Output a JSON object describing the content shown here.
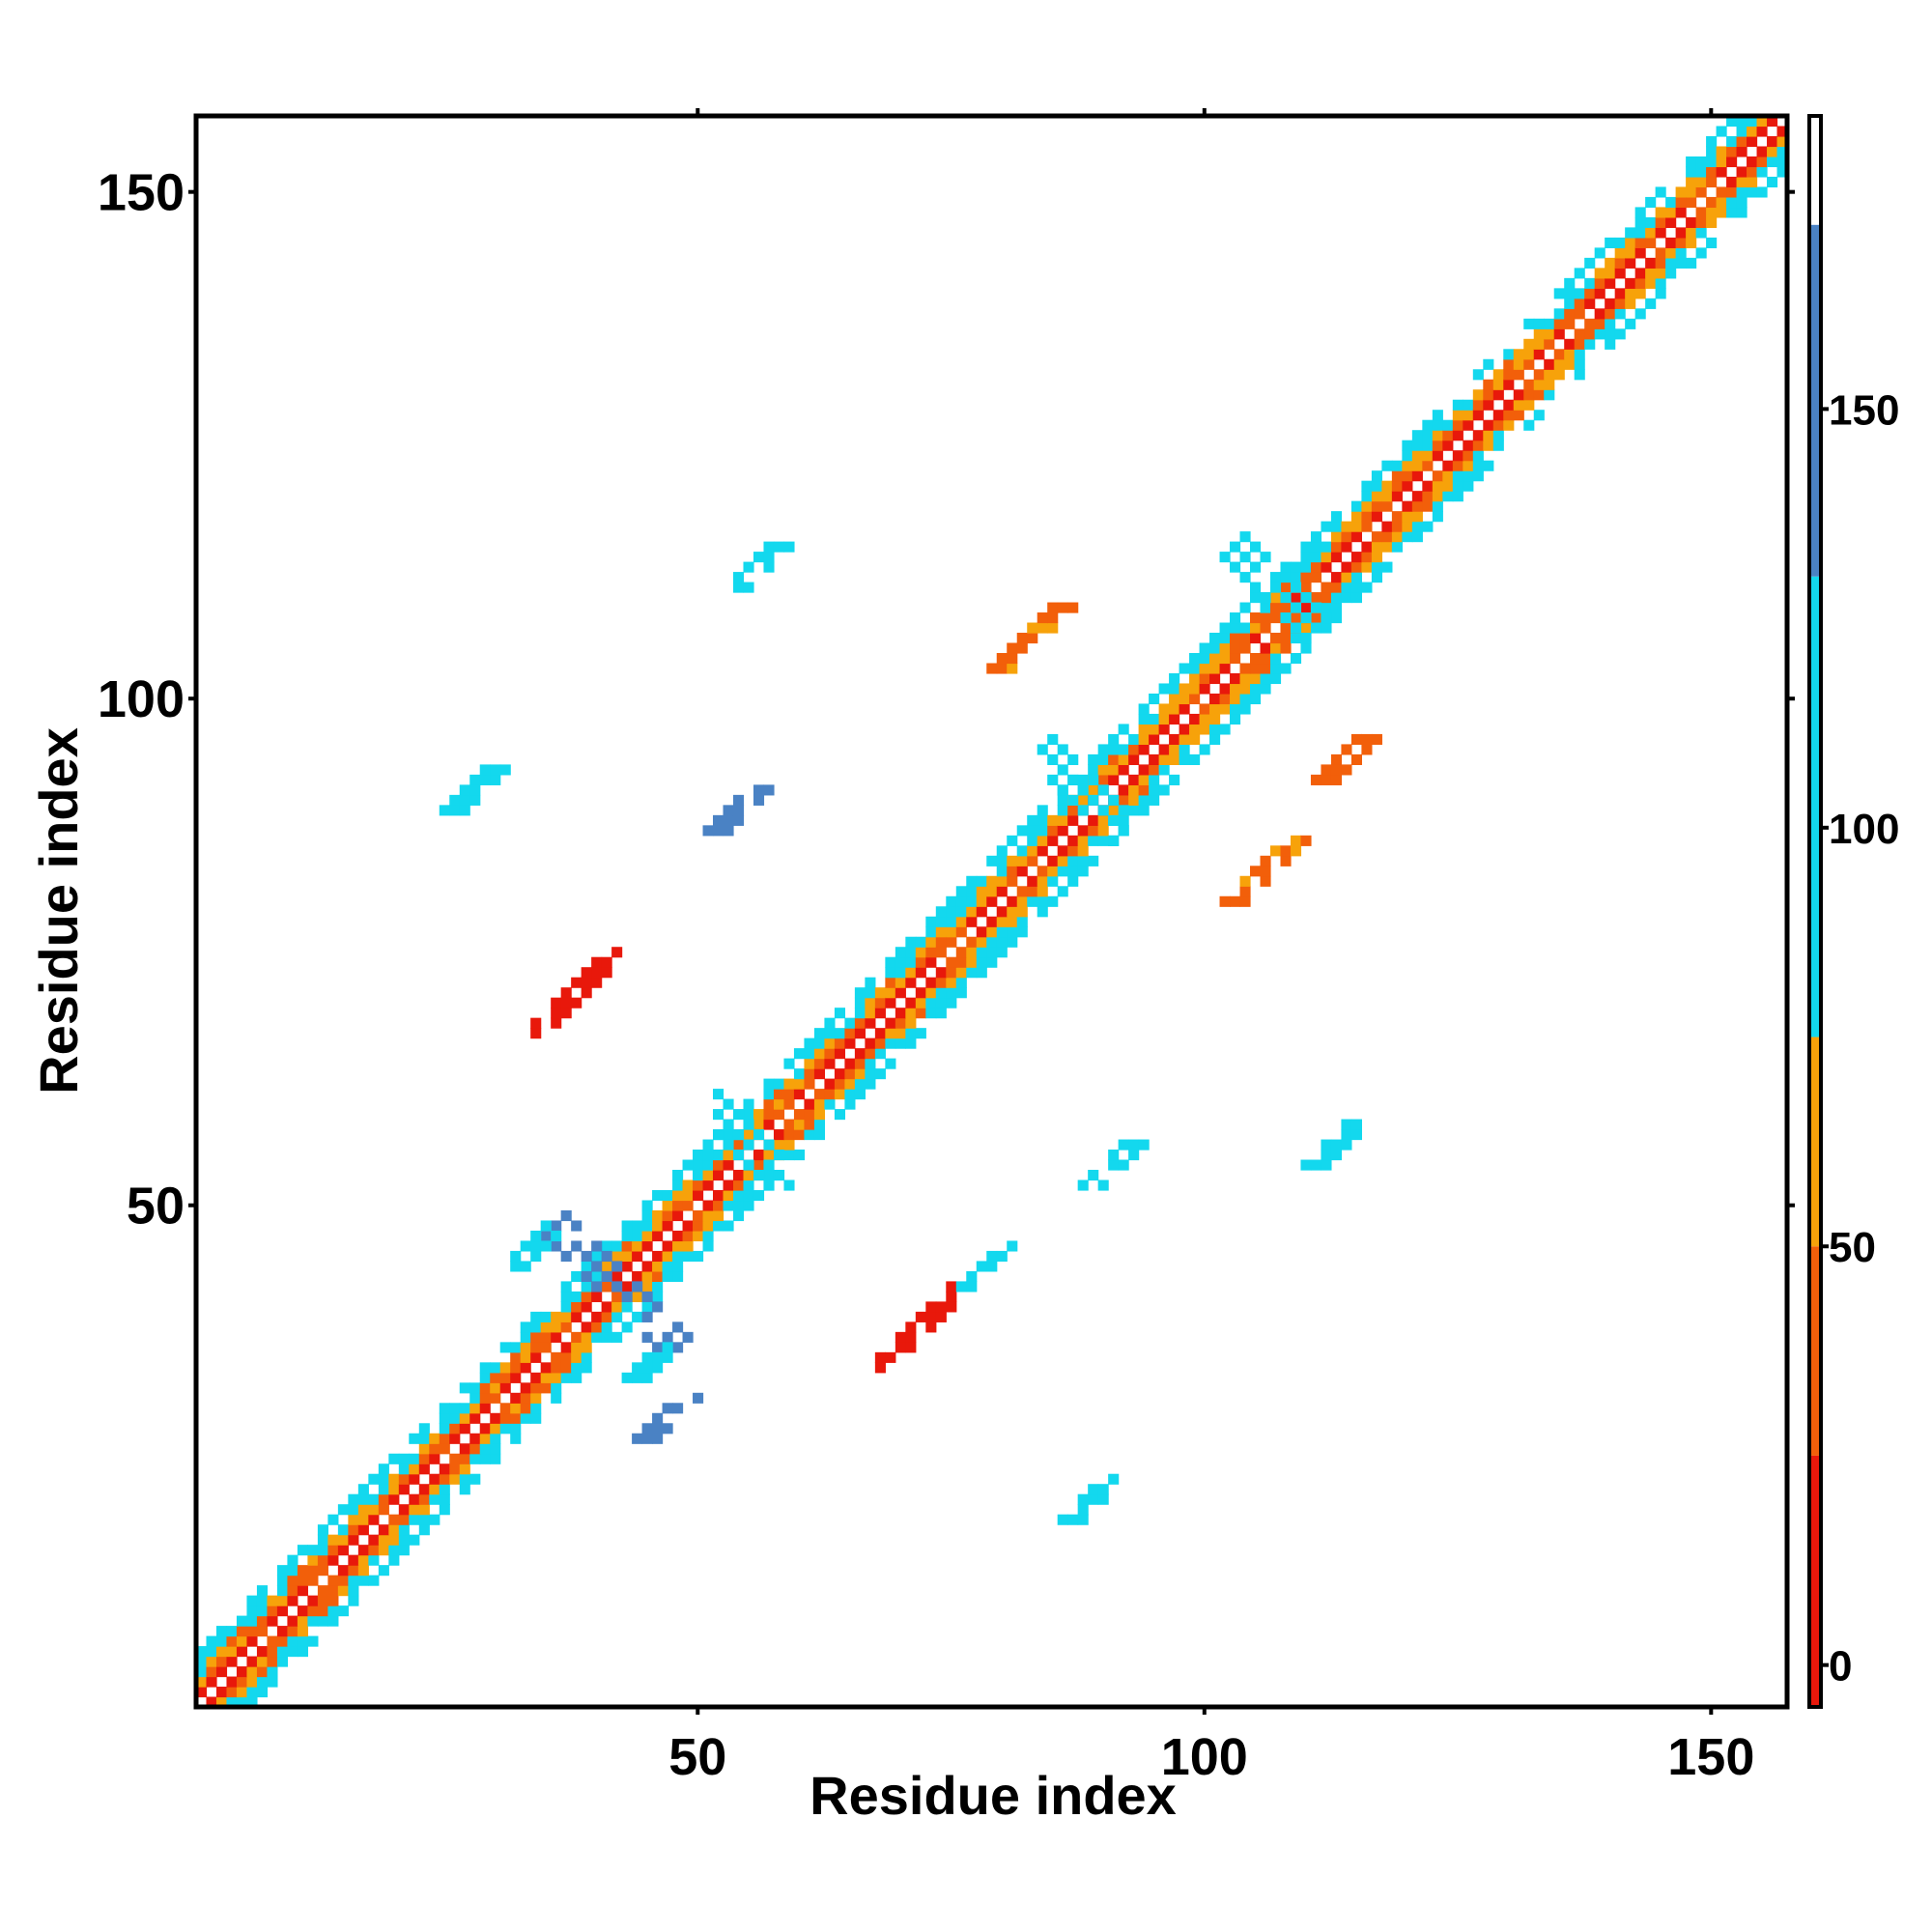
{
  "chart_data": {
    "type": "heatmap",
    "title": "",
    "xlabel": "Residue index",
    "ylabel": "Residue index",
    "xlim": [
      1,
      157
    ],
    "ylim": [
      1,
      157
    ],
    "x_ticks": [
      50,
      100,
      150
    ],
    "y_ticks": [
      50,
      100,
      150
    ],
    "colorbar": {
      "range": [
        -5,
        185
      ],
      "ticks": [
        0,
        50,
        100,
        150
      ],
      "bands": [
        {
          "from": -5,
          "to": 25,
          "color": "#e8180b"
        },
        {
          "from": 25,
          "to": 50,
          "color": "#f25f0a"
        },
        {
          "from": 50,
          "to": 75,
          "color": "#f7a20a"
        },
        {
          "from": 75,
          "to": 130,
          "color": "#13d8ee"
        },
        {
          "from": 130,
          "to": 172,
          "color": "#4a82c4"
        },
        {
          "from": 172,
          "to": 185,
          "color": "#ffffff"
        }
      ]
    },
    "grid": false,
    "legend": "colorbar-right",
    "diagonal_band": {
      "from": 1,
      "to": 157
    },
    "clusters": [
      {
        "cx": 38,
        "cy": 71,
        "len": 4,
        "value": 5,
        "dir": "main"
      },
      {
        "cx": 72,
        "cy": 38,
        "len": 4,
        "value": 5,
        "dir": "main"
      },
      {
        "cx": 42,
        "cy": 42,
        "len": 6,
        "value": 160,
        "dir": "anti"
      },
      {
        "cx": 34,
        "cy": 46,
        "len": 2,
        "value": 100,
        "dir": "main"
      },
      {
        "cx": 46,
        "cy": 35,
        "len": 2,
        "value": 100,
        "dir": "main"
      },
      {
        "cx": 56,
        "cy": 113,
        "len": 2,
        "value": 105,
        "dir": "main"
      },
      {
        "cx": 113,
        "cy": 56,
        "len": 2,
        "value": 105,
        "dir": "main"
      },
      {
        "cx": 83,
        "cy": 106,
        "len": 3,
        "value": 45,
        "dir": "main"
      },
      {
        "cx": 106,
        "cy": 83,
        "len": 3,
        "value": 45,
        "dir": "main"
      },
      {
        "cx": 88,
        "cy": 91,
        "len": 4,
        "value": 105,
        "dir": "anti"
      },
      {
        "cx": 107,
        "cy": 111,
        "len": 4,
        "value": 105,
        "dir": "anti"
      },
      {
        "cx": 55,
        "cy": 56,
        "len": 4,
        "value": 105,
        "dir": "anti"
      },
      {
        "cx": 28,
        "cy": 91,
        "len": 2,
        "value": 110,
        "dir": "main"
      },
      {
        "cx": 54,
        "cy": 89,
        "len": 2,
        "value": 140,
        "dir": "main"
      },
      {
        "cx": 91,
        "cy": 54,
        "len": 2,
        "value": 120,
        "dir": "main"
      },
      {
        "cx": 89,
        "cy": 21,
        "len": 2,
        "value": 110,
        "dir": "main"
      },
      {
        "cx": 114,
        "cy": 94,
        "len": 2,
        "value": 40,
        "dir": "main"
      },
      {
        "cx": 78,
        "cy": 44,
        "len": 2,
        "value": 100,
        "dir": "main"
      },
      {
        "cx": 47,
        "cy": 29,
        "len": 2,
        "value": 140,
        "dir": "main"
      }
    ]
  }
}
